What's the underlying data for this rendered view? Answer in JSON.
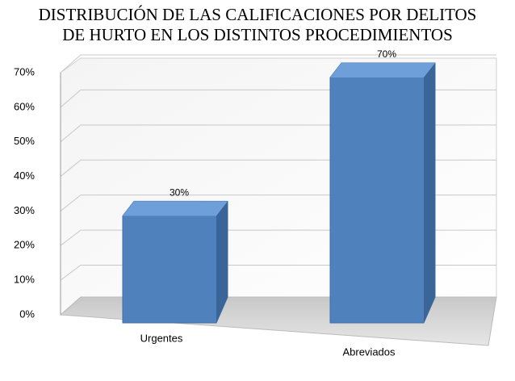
{
  "chart_data": {
    "type": "bar3d",
    "title": [
      "DISTRIBUCIÓN DE LAS CALIFICACIONES POR DELITOS",
      "DE HURTO EN  LOS DISTINTOS PROCEDIMIENTOS"
    ],
    "categories": [
      "Urgentes",
      "Abreviados"
    ],
    "values": [
      30,
      70
    ],
    "value_labels": [
      "30%",
      "70%"
    ],
    "color": "#4f81bd",
    "ylim": [
      0,
      70
    ],
    "yticks": [
      {
        "value": 0,
        "label": "0%"
      },
      {
        "value": 10,
        "label": "10%"
      },
      {
        "value": 20,
        "label": "20%"
      },
      {
        "value": 30,
        "label": "30%"
      },
      {
        "value": 40,
        "label": "40%"
      },
      {
        "value": 50,
        "label": "50%"
      },
      {
        "value": 60,
        "label": "60%"
      },
      {
        "value": 70,
        "label": "70%"
      }
    ],
    "grid": true
  }
}
